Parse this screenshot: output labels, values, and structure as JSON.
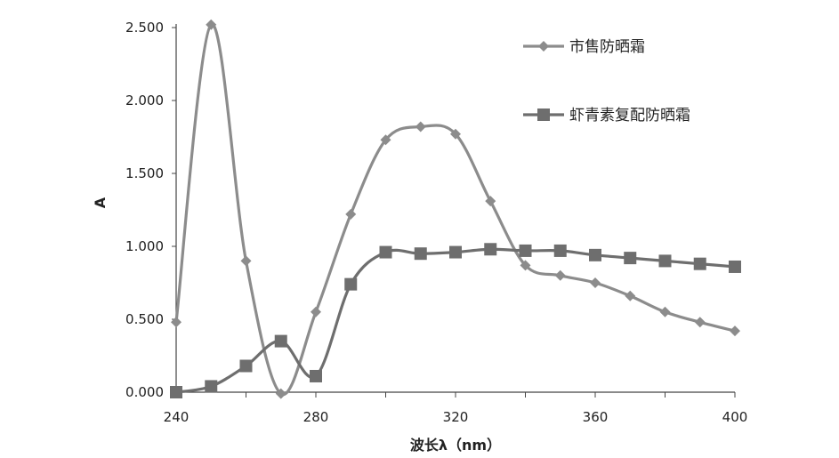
{
  "chart_data": {
    "type": "line",
    "xlabel": "波长λ（nm）",
    "ylabel": "A",
    "xlim": [
      240,
      400
    ],
    "ylim": [
      0,
      2.5
    ],
    "xticks": [
      "240",
      "280",
      "320",
      "360",
      "400"
    ],
    "yticks": [
      "0.000",
      "0.500",
      "1.000",
      "1.500",
      "2.000",
      "2.500"
    ],
    "grid": false,
    "legend_position": "top-right",
    "x": [
      240,
      250,
      260,
      270,
      280,
      290,
      300,
      310,
      320,
      330,
      340,
      350,
      360,
      370,
      380,
      390,
      400
    ],
    "series": [
      {
        "name": "市售防晒霜",
        "marker": "diamond",
        "color": "#8c8c8c",
        "values": [
          0.48,
          2.52,
          0.9,
          -0.01,
          0.55,
          1.22,
          1.73,
          1.82,
          1.77,
          1.31,
          0.87,
          0.8,
          0.75,
          0.66,
          0.55,
          0.48,
          0.42
        ]
      },
      {
        "name": "虾青素复配防晒霜",
        "marker": "square",
        "color": "#6e6e6e",
        "values": [
          0.0,
          0.04,
          0.18,
          0.35,
          0.11,
          0.74,
          0.96,
          0.95,
          0.96,
          0.98,
          0.97,
          0.97,
          0.94,
          0.92,
          0.9,
          0.88,
          0.86
        ]
      }
    ]
  }
}
